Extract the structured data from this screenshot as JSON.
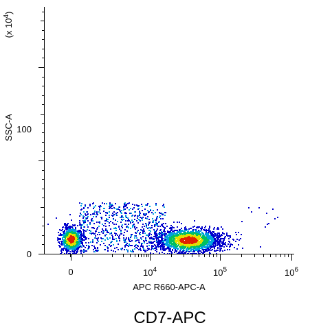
{
  "chart_data": {
    "type": "scatter",
    "title": "CD7-APC",
    "xlabel": "APC R660-APC-A",
    "ylabel": "SSC-A",
    "y_multiplier_label": "(x 10",
    "y_multiplier_exp": "4",
    "y_multiplier_close": ")",
    "x_scale": "biexponential",
    "y_scale": "linear",
    "xlim": [
      -200,
      1000000
    ],
    "ylim": [
      0,
      262144
    ],
    "x_ticks": [
      {
        "base": "0",
        "exp": ""
      },
      {
        "base": "10",
        "exp": "4"
      },
      {
        "base": "10",
        "exp": "5"
      },
      {
        "base": "10",
        "exp": "6"
      }
    ],
    "y_ticks": [
      "0",
      "100"
    ],
    "density_colors": [
      "#0000cc",
      "#00a0e0",
      "#00c060",
      "#e0e000",
      "#e02000"
    ],
    "populations": [
      {
        "name": "",
        "x_center": 0,
        "y_center": 16000,
        "count": 900
      },
      {
        "name": "",
        "x_center": 35000,
        "y_center": 15000,
        "count": 1800
      }
    ]
  }
}
